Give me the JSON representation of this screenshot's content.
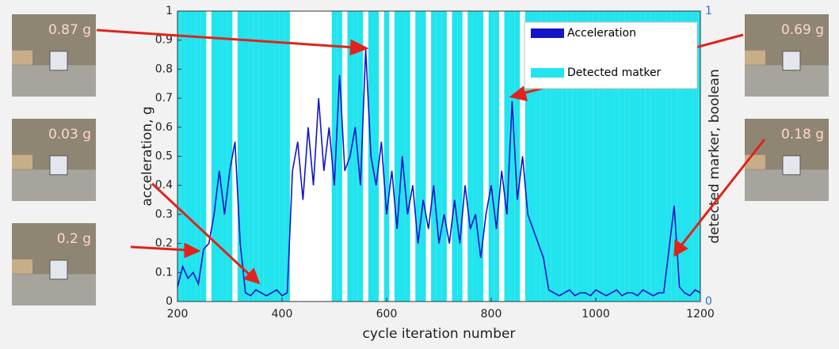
{
  "chart_data": {
    "type": "line",
    "xlabel": "cycle iteration number",
    "ylabel": "acceleration, g",
    "y2label": "detected marker, boolean",
    "x": [
      200,
      210,
      220,
      230,
      240,
      250,
      260,
      270,
      280,
      290,
      300,
      310,
      320,
      330,
      340,
      350,
      360,
      370,
      380,
      390,
      400,
      410,
      420,
      430,
      440,
      450,
      460,
      470,
      480,
      490,
      500,
      510,
      520,
      530,
      540,
      550,
      560,
      570,
      580,
      590,
      600,
      610,
      620,
      630,
      640,
      650,
      660,
      670,
      680,
      690,
      700,
      710,
      720,
      730,
      740,
      750,
      760,
      770,
      780,
      790,
      800,
      810,
      820,
      830,
      840,
      850,
      860,
      870,
      880,
      890,
      900,
      910,
      920,
      930,
      940,
      950,
      960,
      970,
      980,
      990,
      1000,
      1010,
      1020,
      1030,
      1040,
      1050,
      1060,
      1070,
      1080,
      1090,
      1100,
      1110,
      1120,
      1130,
      1140,
      1150,
      1160,
      1170,
      1180,
      1190,
      1200
    ],
    "series": [
      {
        "name": "Acceleration",
        "color": "#1414c8",
        "values": [
          0.05,
          0.12,
          0.08,
          0.1,
          0.06,
          0.18,
          0.2,
          0.3,
          0.45,
          0.3,
          0.45,
          0.55,
          0.2,
          0.03,
          0.02,
          0.04,
          0.03,
          0.02,
          0.03,
          0.04,
          0.02,
          0.03,
          0.45,
          0.55,
          0.35,
          0.6,
          0.4,
          0.7,
          0.45,
          0.6,
          0.4,
          0.78,
          0.45,
          0.5,
          0.6,
          0.4,
          0.87,
          0.5,
          0.4,
          0.55,
          0.3,
          0.45,
          0.25,
          0.5,
          0.3,
          0.4,
          0.2,
          0.35,
          0.25,
          0.4,
          0.2,
          0.3,
          0.2,
          0.35,
          0.2,
          0.4,
          0.25,
          0.3,
          0.15,
          0.3,
          0.4,
          0.25,
          0.45,
          0.3,
          0.69,
          0.35,
          0.5,
          0.3,
          0.25,
          0.2,
          0.15,
          0.04,
          0.03,
          0.02,
          0.03,
          0.04,
          0.02,
          0.03,
          0.03,
          0.02,
          0.04,
          0.03,
          0.02,
          0.03,
          0.04,
          0.02,
          0.03,
          0.03,
          0.02,
          0.04,
          0.03,
          0.02,
          0.03,
          0.03,
          0.18,
          0.33,
          0.05,
          0.03,
          0.02,
          0.04,
          0.03
        ]
      },
      {
        "name": "Detected matker",
        "color": "#22e4ee",
        "axis": "y2",
        "values": [
          1,
          1,
          1,
          1,
          1,
          1,
          0,
          1,
          1,
          1,
          1,
          0,
          1,
          1,
          1,
          1,
          1,
          1,
          1,
          1,
          1,
          1,
          0,
          0,
          0,
          0,
          0,
          0,
          0,
          0,
          1,
          1,
          0,
          1,
          1,
          1,
          0,
          1,
          1,
          0,
          1,
          0,
          1,
          1,
          1,
          0,
          1,
          1,
          0,
          1,
          1,
          1,
          0,
          1,
          1,
          0,
          1,
          1,
          1,
          0,
          1,
          1,
          0,
          1,
          1,
          1,
          0,
          1,
          1,
          1,
          1,
          1,
          1,
          1,
          1,
          1,
          1,
          1,
          1,
          1,
          1,
          1,
          1,
          1,
          1,
          1,
          1,
          1,
          1,
          1,
          1,
          1,
          1,
          1,
          1,
          1,
          1,
          1,
          1,
          1,
          1
        ]
      }
    ],
    "xlim": [
      200,
      1200
    ],
    "xticks": [
      200,
      400,
      600,
      800,
      1000,
      1200
    ],
    "ylim": [
      0,
      1
    ],
    "yticks": [
      0,
      0.1,
      0.2,
      0.3,
      0.4,
      0.5,
      0.6,
      0.7,
      0.8,
      0.9,
      1
    ],
    "y2lim": [
      0,
      1
    ],
    "y2ticks": [
      0,
      1
    ],
    "annotations": [
      "0.87 g",
      "0.03 g",
      "0.2 g",
      "0.69 g",
      "0.18 g"
    ]
  }
}
